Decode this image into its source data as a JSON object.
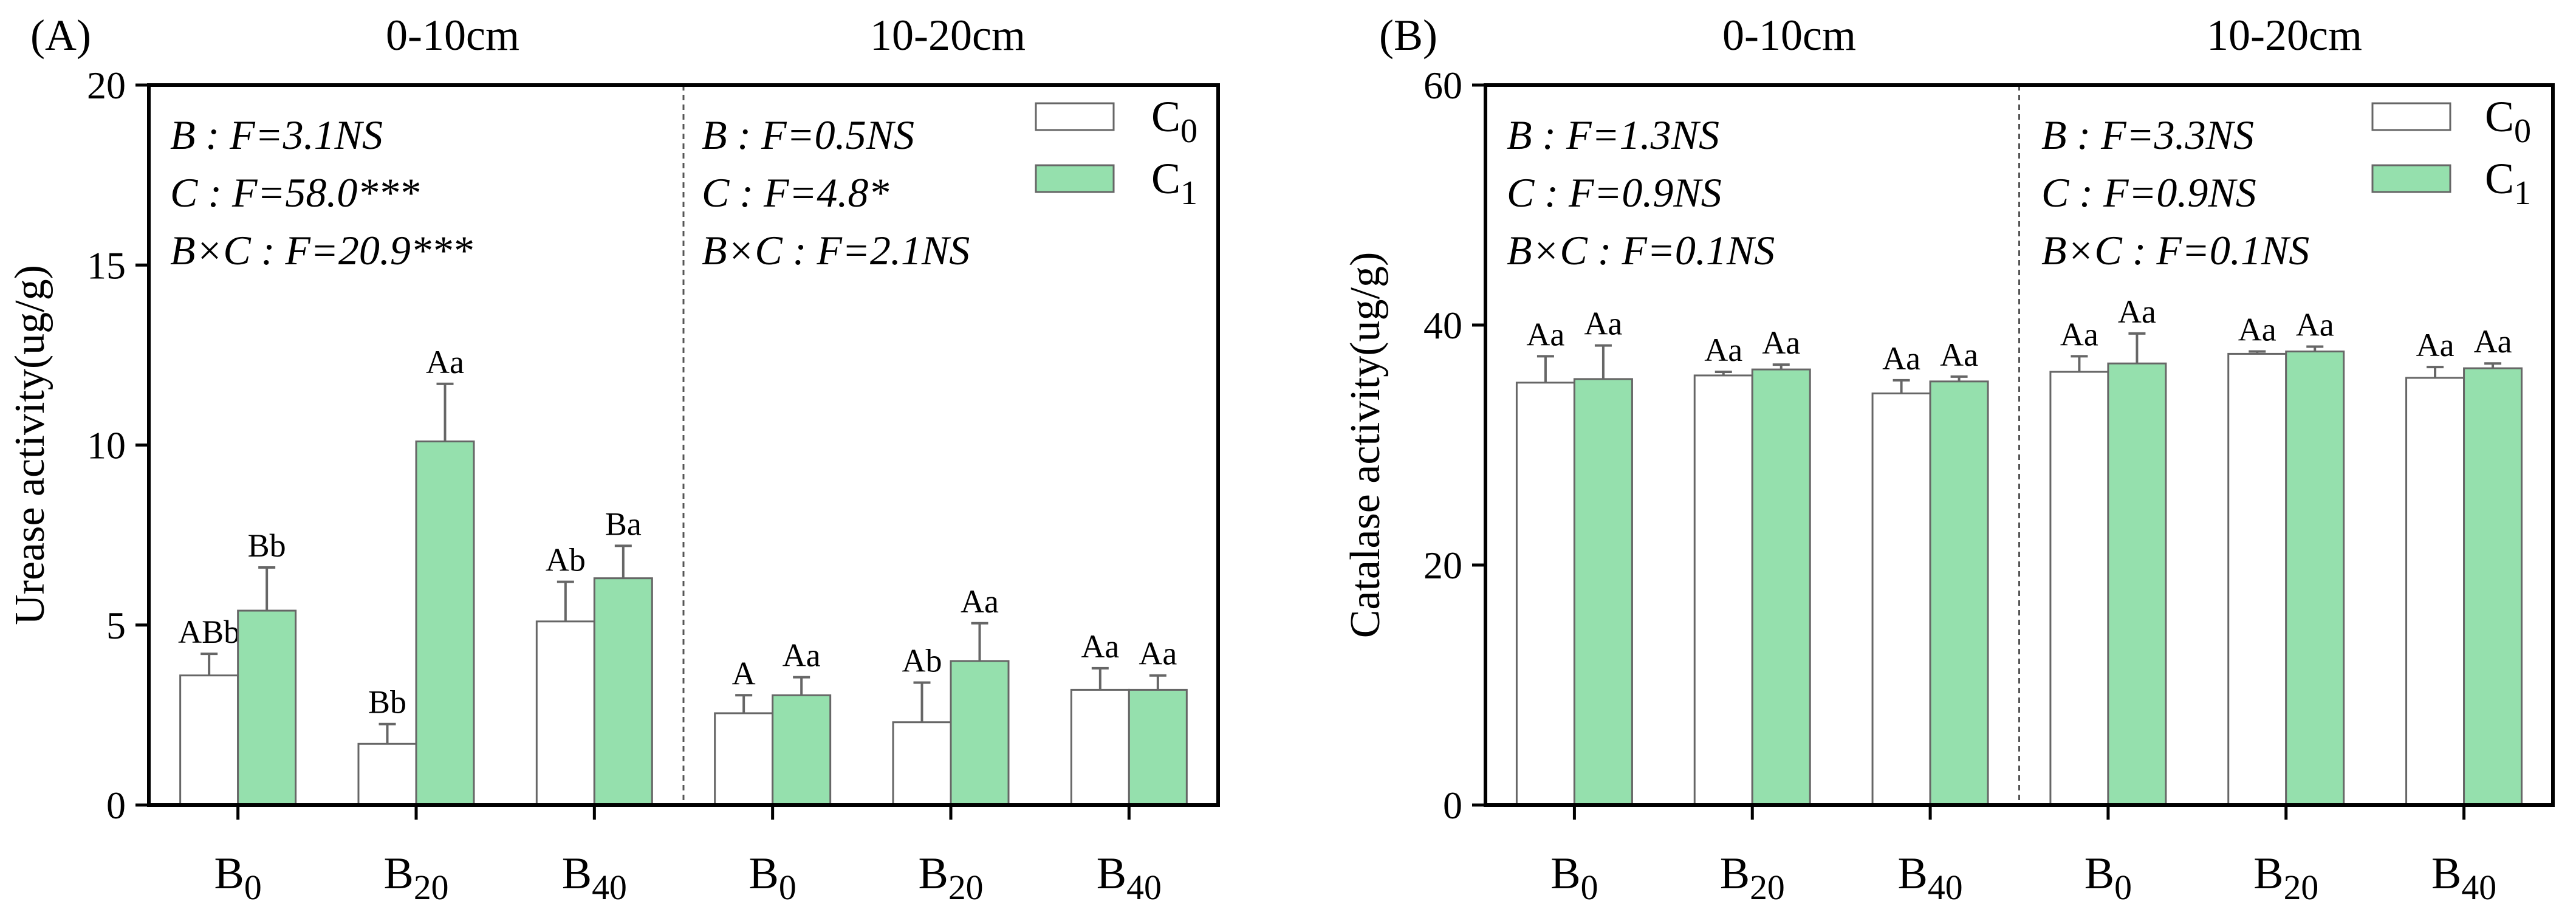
{
  "chart_data": [
    {
      "type": "bar",
      "panel_label": "(A)",
      "ylabel": "Urease activity(ug/g)",
      "ylim": [
        0,
        20
      ],
      "yticks": [
        0,
        5,
        10,
        15,
        20
      ],
      "yticks_text": [
        "0",
        "5",
        "10",
        "15",
        "20"
      ],
      "groups": [
        {
          "depth": "0-10cm",
          "stats": [
            "B : F=3.1NS",
            "C : F=58.0***",
            "B×C : F=20.9***"
          ],
          "categories": [
            {
              "base": "B",
              "sub": "0",
              "bars": [
                {
                  "series": "C0",
                  "value": 3.6,
                  "error": 0.6,
                  "label": "ABb"
                },
                {
                  "series": "C1",
                  "value": 5.4,
                  "error": 1.2,
                  "label": "Bb"
                }
              ]
            },
            {
              "base": "B",
              "sub": "20",
              "bars": [
                {
                  "series": "C0",
                  "value": 1.7,
                  "error": 0.55,
                  "label": "Bb"
                },
                {
                  "series": "C1",
                  "value": 10.1,
                  "error": 1.6,
                  "label": "Aa"
                }
              ]
            },
            {
              "base": "B",
              "sub": "40",
              "bars": [
                {
                  "series": "C0",
                  "value": 5.1,
                  "error": 1.1,
                  "label": "Ab"
                },
                {
                  "series": "C1",
                  "value": 6.3,
                  "error": 0.9,
                  "label": "Ba"
                }
              ]
            }
          ]
        },
        {
          "depth": "10-20cm",
          "stats": [
            "B : F=0.5NS",
            "C : F=4.8*",
            "B×C : F=2.1NS"
          ],
          "categories": [
            {
              "base": "B",
              "sub": "0",
              "bars": [
                {
                  "series": "C0",
                  "value": 2.55,
                  "error": 0.5,
                  "label": "A"
                },
                {
                  "series": "C1",
                  "value": 3.05,
                  "error": 0.5,
                  "label": "Aa"
                }
              ]
            },
            {
              "base": "B",
              "sub": "20",
              "bars": [
                {
                  "series": "C0",
                  "value": 2.3,
                  "error": 1.1,
                  "label": "Ab"
                },
                {
                  "series": "C1",
                  "value": 4.0,
                  "error": 1.05,
                  "label": "Aa"
                }
              ]
            },
            {
              "base": "B",
              "sub": "40",
              "bars": [
                {
                  "series": "C0",
                  "value": 3.2,
                  "error": 0.6,
                  "label": "Aa"
                },
                {
                  "series": "C1",
                  "value": 3.2,
                  "error": 0.4,
                  "label": "Aa"
                }
              ]
            }
          ]
        }
      ]
    },
    {
      "type": "bar",
      "panel_label": "(B)",
      "ylabel": "Catalase activity(ug/g)",
      "ylim": [
        0,
        60
      ],
      "yticks": [
        0,
        20,
        40,
        60
      ],
      "yticks_text": [
        "0",
        "20",
        "40",
        "60"
      ],
      "groups": [
        {
          "depth": "0-10cm",
          "stats": [
            "B : F=1.3NS",
            "C : F=0.9NS",
            "B×C : F=0.1NS"
          ],
          "categories": [
            {
              "base": "B",
              "sub": "0",
              "bars": [
                {
                  "series": "C0",
                  "value": 35.2,
                  "error": 2.2,
                  "label": "Aa"
                },
                {
                  "series": "C1",
                  "value": 35.5,
                  "error": 2.8,
                  "label": "Aa"
                }
              ]
            },
            {
              "base": "B",
              "sub": "20",
              "bars": [
                {
                  "series": "C0",
                  "value": 35.8,
                  "error": 0.3,
                  "label": "Aa"
                },
                {
                  "series": "C1",
                  "value": 36.3,
                  "error": 0.4,
                  "label": "Aa"
                }
              ]
            },
            {
              "base": "B",
              "sub": "40",
              "bars": [
                {
                  "series": "C0",
                  "value": 34.3,
                  "error": 1.1,
                  "label": "Aa"
                },
                {
                  "series": "C1",
                  "value": 35.3,
                  "error": 0.4,
                  "label": "Aa"
                }
              ]
            }
          ]
        },
        {
          "depth": "10-20cm",
          "stats": [
            "B : F=3.3NS",
            "C : F=0.9NS",
            "B×C : F=0.1NS"
          ],
          "categories": [
            {
              "base": "B",
              "sub": "0",
              "bars": [
                {
                  "series": "C0",
                  "value": 36.1,
                  "error": 1.3,
                  "label": "Aa"
                },
                {
                  "series": "C1",
                  "value": 36.8,
                  "error": 2.5,
                  "label": "Aa"
                }
              ]
            },
            {
              "base": "B",
              "sub": "20",
              "bars": [
                {
                  "series": "C0",
                  "value": 37.6,
                  "error": 0.2,
                  "label": "Aa"
                },
                {
                  "series": "C1",
                  "value": 37.8,
                  "error": 0.4,
                  "label": "Aa"
                }
              ]
            },
            {
              "base": "B",
              "sub": "40",
              "bars": [
                {
                  "series": "C0",
                  "value": 35.6,
                  "error": 0.9,
                  "label": "Aa"
                },
                {
                  "series": "C1",
                  "value": 36.4,
                  "error": 0.4,
                  "label": "Aa"
                }
              ]
            }
          ]
        }
      ]
    }
  ],
  "legend": [
    {
      "series": "C0",
      "base": "C",
      "sub": "0",
      "color": "#ffffff"
    },
    {
      "series": "C1",
      "base": "C",
      "sub": "1",
      "color": "#95e0ad"
    }
  ],
  "colors": {
    "bar_edge": "#666666",
    "axis": "#000000",
    "separator": "#555555"
  }
}
